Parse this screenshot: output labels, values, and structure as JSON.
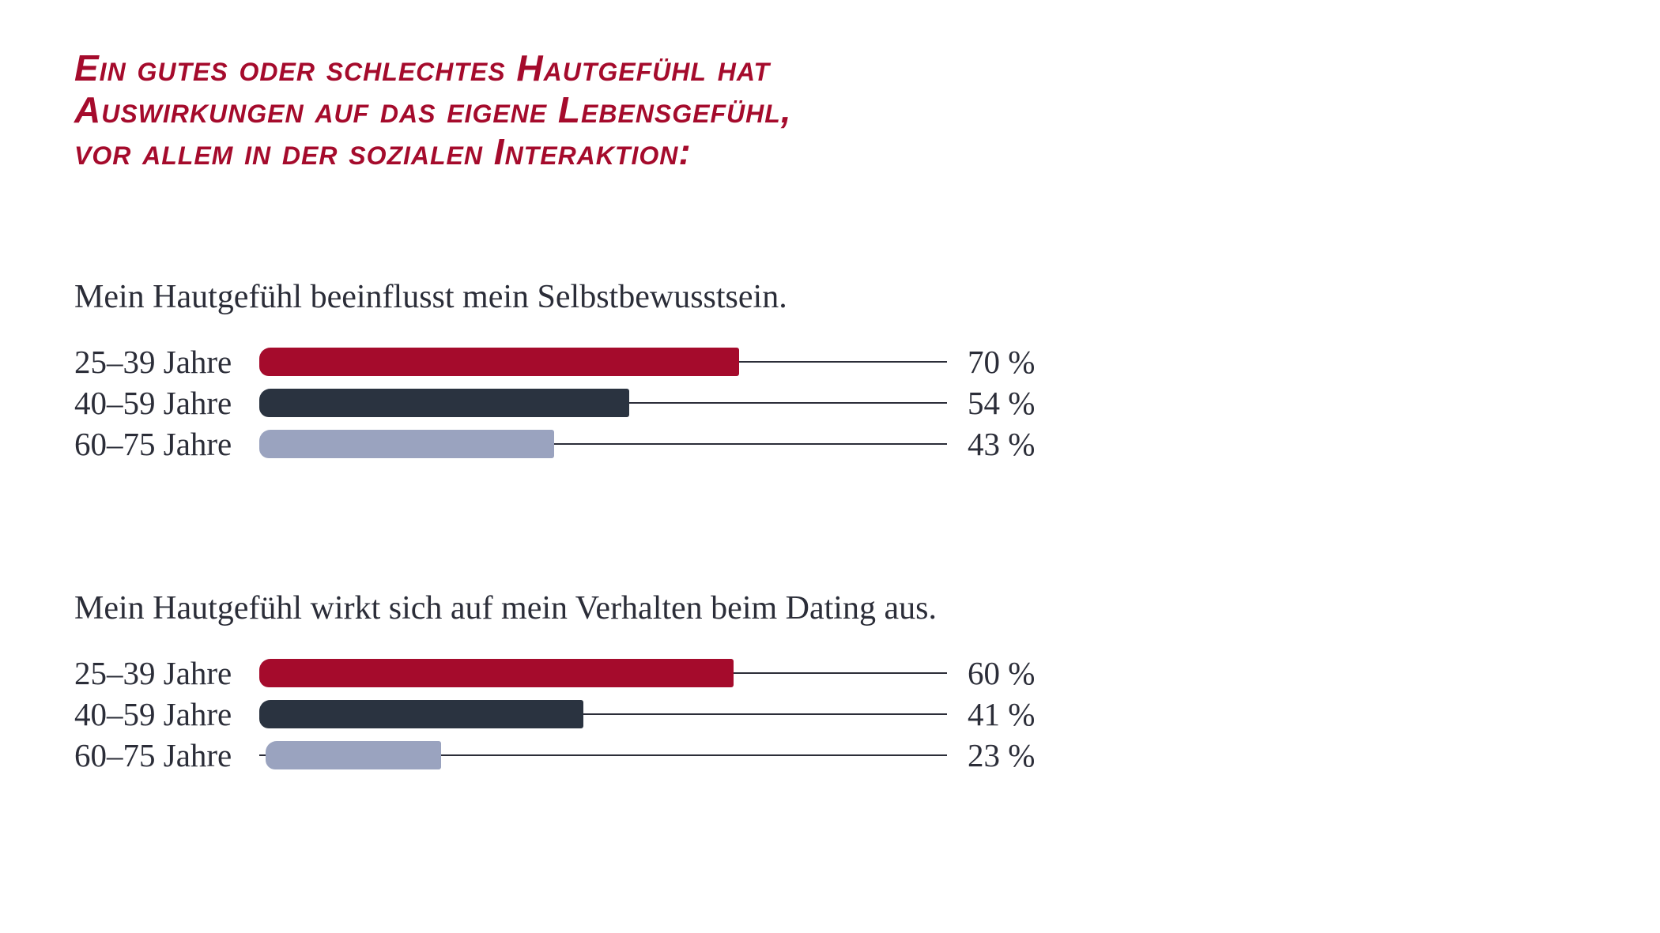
{
  "title": {
    "lines": [
      "Ein gutes oder schlechtes Hautgefühl hat",
      "Auswirkungen auf das eigene Lebensgefühl,",
      "vor allem in der sozialen Interaktion:"
    ],
    "color": "#a50b2c"
  },
  "chart_data": [
    {
      "type": "bar",
      "orientation": "horizontal",
      "title": "Mein Hautgefühl beeinflusst mein Selbstbewusstsein.",
      "categories": [
        "25–39 Jahre",
        "40–59 Jahre",
        "60–75 Jahre"
      ],
      "values": [
        70,
        54,
        43
      ],
      "value_labels": [
        "70 %",
        "54 %",
        "43 %"
      ],
      "colors": [
        "#a50b2c",
        "#2a3340",
        "#9aa3bf"
      ],
      "grid": false
    },
    {
      "type": "bar",
      "orientation": "horizontal",
      "title": "Mein Hautgefühl wirkt sich auf mein Verhalten beim Dating aus.",
      "categories": [
        "25–39 Jahre",
        "40–59 Jahre",
        "60–75 Jahre"
      ],
      "values": [
        60,
        41,
        23
      ],
      "value_labels": [
        "60 %",
        "41 %",
        "23 %"
      ],
      "colors": [
        "#a50b2c",
        "#2a3340",
        "#9aa3bf"
      ],
      "grid": false
    }
  ]
}
